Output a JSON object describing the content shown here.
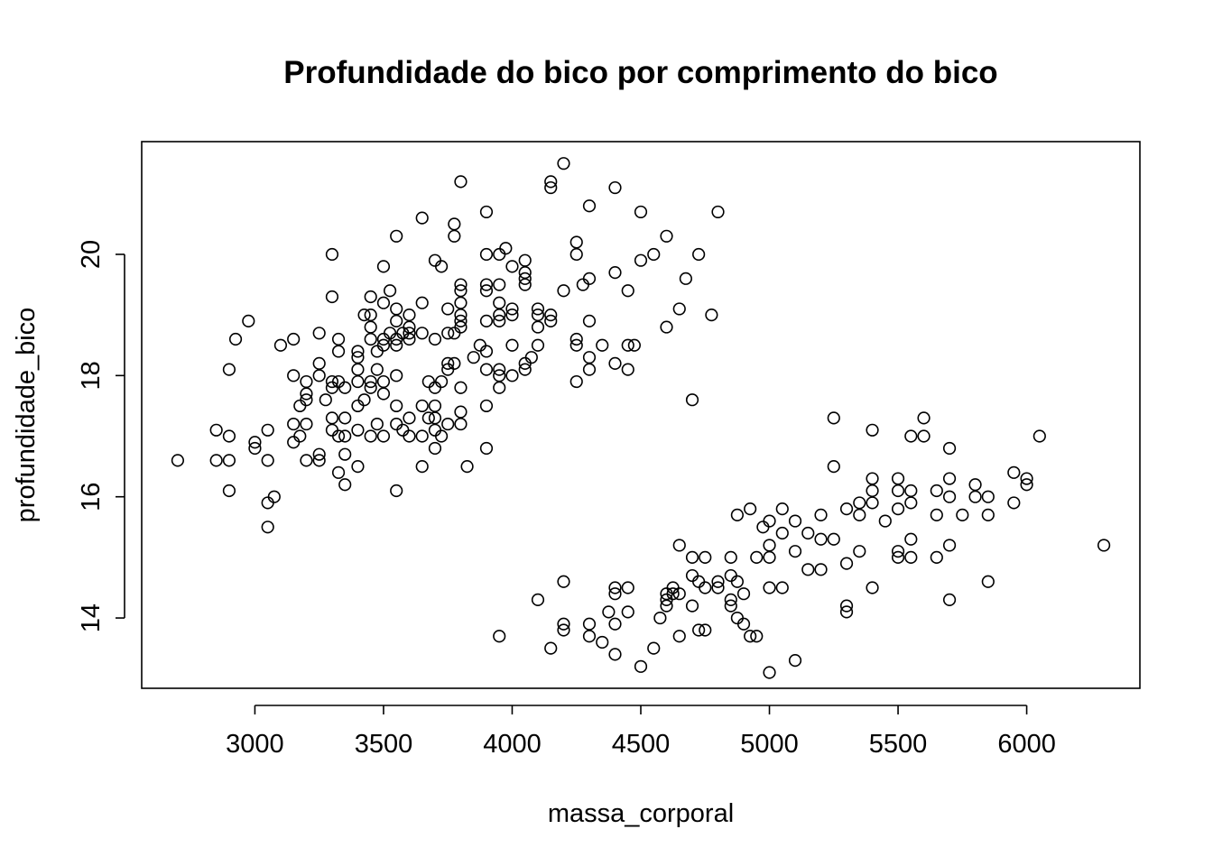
{
  "chart_data": {
    "type": "scatter",
    "title": "Profundidade do bico por comprimento do bico",
    "xlabel": "massa_corporal",
    "ylabel": "profundidade_bico",
    "xlim": [
      2560,
      6440
    ],
    "ylim": [
      12.84,
      21.86
    ],
    "x_ticks": [
      3000,
      3500,
      4000,
      4500,
      5000,
      5500,
      6000
    ],
    "y_ticks": [
      14,
      16,
      18,
      20
    ],
    "grid": false,
    "legend": "none",
    "marker": "open-circle",
    "points": [
      [
        2700,
        16.6
      ],
      [
        2850,
        17.1
      ],
      [
        2850,
        16.6
      ],
      [
        2900,
        17.0
      ],
      [
        2900,
        16.6
      ],
      [
        2900,
        18.1
      ],
      [
        2900,
        16.1
      ],
      [
        2925,
        18.6
      ],
      [
        2975,
        18.9
      ],
      [
        3000,
        16.9
      ],
      [
        3000,
        16.8
      ],
      [
        3050,
        17.1
      ],
      [
        3050,
        16.6
      ],
      [
        3050,
        15.9
      ],
      [
        3050,
        15.5
      ],
      [
        3075,
        16.0
      ],
      [
        3100,
        18.5
      ],
      [
        3150,
        18.6
      ],
      [
        3150,
        18.0
      ],
      [
        3150,
        17.2
      ],
      [
        3150,
        16.9
      ],
      [
        3175,
        17.0
      ],
      [
        3175,
        17.5
      ],
      [
        3200,
        17.9
      ],
      [
        3200,
        17.7
      ],
      [
        3200,
        17.6
      ],
      [
        3200,
        17.2
      ],
      [
        3200,
        16.6
      ],
      [
        3250,
        18.7
      ],
      [
        3250,
        18.2
      ],
      [
        3250,
        18.0
      ],
      [
        3250,
        16.7
      ],
      [
        3250,
        16.6
      ],
      [
        3275,
        17.6
      ],
      [
        3300,
        20.0
      ],
      [
        3300,
        19.3
      ],
      [
        3300,
        17.9
      ],
      [
        3300,
        17.8
      ],
      [
        3300,
        17.3
      ],
      [
        3300,
        17.1
      ],
      [
        3325,
        18.6
      ],
      [
        3325,
        18.4
      ],
      [
        3325,
        17.9
      ],
      [
        3325,
        17.0
      ],
      [
        3325,
        16.4
      ],
      [
        3350,
        17.8
      ],
      [
        3350,
        17.3
      ],
      [
        3350,
        17.0
      ],
      [
        3350,
        16.7
      ],
      [
        3350,
        16.2
      ],
      [
        3400,
        18.4
      ],
      [
        3400,
        18.3
      ],
      [
        3400,
        18.1
      ],
      [
        3400,
        17.9
      ],
      [
        3400,
        17.5
      ],
      [
        3400,
        17.1
      ],
      [
        3400,
        16.5
      ],
      [
        3425,
        19.0
      ],
      [
        3425,
        17.6
      ],
      [
        3450,
        19.3
      ],
      [
        3450,
        19.0
      ],
      [
        3450,
        18.8
      ],
      [
        3450,
        18.6
      ],
      [
        3450,
        17.9
      ],
      [
        3450,
        17.8
      ],
      [
        3450,
        17.0
      ],
      [
        3475,
        18.4
      ],
      [
        3475,
        18.1
      ],
      [
        3475,
        17.2
      ],
      [
        3500,
        19.8
      ],
      [
        3500,
        19.2
      ],
      [
        3500,
        18.6
      ],
      [
        3500,
        18.5
      ],
      [
        3500,
        17.9
      ],
      [
        3500,
        17.7
      ],
      [
        3500,
        17.0
      ],
      [
        3525,
        19.4
      ],
      [
        3525,
        18.7
      ],
      [
        3550,
        20.3
      ],
      [
        3550,
        19.1
      ],
      [
        3550,
        18.9
      ],
      [
        3550,
        18.6
      ],
      [
        3550,
        18.5
      ],
      [
        3550,
        18.0
      ],
      [
        3550,
        17.5
      ],
      [
        3550,
        17.2
      ],
      [
        3550,
        16.1
      ],
      [
        3575,
        18.7
      ],
      [
        3575,
        17.1
      ],
      [
        3600,
        19.0
      ],
      [
        3600,
        18.8
      ],
      [
        3600,
        18.7
      ],
      [
        3600,
        18.6
      ],
      [
        3600,
        17.3
      ],
      [
        3600,
        17.0
      ],
      [
        3650,
        20.6
      ],
      [
        3650,
        19.2
      ],
      [
        3650,
        18.7
      ],
      [
        3650,
        17.5
      ],
      [
        3650,
        17.0
      ],
      [
        3650,
        16.5
      ],
      [
        3675,
        17.9
      ],
      [
        3675,
        17.3
      ],
      [
        3700,
        19.9
      ],
      [
        3700,
        18.6
      ],
      [
        3700,
        17.8
      ],
      [
        3700,
        17.5
      ],
      [
        3700,
        17.3
      ],
      [
        3700,
        17.1
      ],
      [
        3700,
        16.8
      ],
      [
        3725,
        19.8
      ],
      [
        3725,
        17.9
      ],
      [
        3725,
        17.0
      ],
      [
        3750,
        19.1
      ],
      [
        3750,
        18.7
      ],
      [
        3750,
        18.2
      ],
      [
        3750,
        18.1
      ],
      [
        3750,
        17.2
      ],
      [
        3775,
        20.5
      ],
      [
        3775,
        20.3
      ],
      [
        3775,
        18.2
      ],
      [
        3775,
        18.7
      ],
      [
        3800,
        21.2
      ],
      [
        3800,
        19.5
      ],
      [
        3800,
        19.4
      ],
      [
        3800,
        19.2
      ],
      [
        3800,
        19.0
      ],
      [
        3800,
        18.9
      ],
      [
        3800,
        18.8
      ],
      [
        3800,
        17.8
      ],
      [
        3800,
        17.4
      ],
      [
        3800,
        17.2
      ],
      [
        3825,
        16.5
      ],
      [
        3850,
        18.3
      ],
      [
        3875,
        18.5
      ],
      [
        3900,
        20.7
      ],
      [
        3900,
        20.0
      ],
      [
        3900,
        19.5
      ],
      [
        3900,
        19.4
      ],
      [
        3900,
        18.9
      ],
      [
        3900,
        18.4
      ],
      [
        3900,
        18.1
      ],
      [
        3900,
        17.5
      ],
      [
        3900,
        16.8
      ],
      [
        3950,
        20.0
      ],
      [
        3950,
        19.5
      ],
      [
        3950,
        19.2
      ],
      [
        3950,
        19.0
      ],
      [
        3950,
        18.9
      ],
      [
        3950,
        18.1
      ],
      [
        3950,
        18.0
      ],
      [
        3950,
        17.8
      ],
      [
        3975,
        20.1
      ],
      [
        4000,
        19.8
      ],
      [
        4000,
        19.1
      ],
      [
        4000,
        19.0
      ],
      [
        4000,
        18.5
      ],
      [
        4000,
        18.0
      ],
      [
        4050,
        19.9
      ],
      [
        4050,
        19.7
      ],
      [
        4050,
        19.6
      ],
      [
        4050,
        19.5
      ],
      [
        4050,
        18.2
      ],
      [
        4050,
        18.1
      ],
      [
        4075,
        18.3
      ],
      [
        4100,
        19.1
      ],
      [
        4100,
        19.0
      ],
      [
        4100,
        18.8
      ],
      [
        4100,
        18.5
      ],
      [
        4150,
        21.2
      ],
      [
        4150,
        21.1
      ],
      [
        4150,
        19.0
      ],
      [
        4150,
        18.9
      ],
      [
        4200,
        21.5
      ],
      [
        4200,
        19.4
      ],
      [
        4250,
        20.2
      ],
      [
        4250,
        20.0
      ],
      [
        4250,
        18.6
      ],
      [
        4250,
        18.5
      ],
      [
        4250,
        17.9
      ],
      [
        4275,
        19.5
      ],
      [
        4300,
        20.8
      ],
      [
        4300,
        19.6
      ],
      [
        4300,
        18.9
      ],
      [
        4300,
        18.3
      ],
      [
        4300,
        18.1
      ],
      [
        4350,
        18.5
      ],
      [
        4400,
        21.1
      ],
      [
        4400,
        19.7
      ],
      [
        4400,
        18.2
      ],
      [
        4450,
        19.4
      ],
      [
        4450,
        18.5
      ],
      [
        4450,
        18.1
      ],
      [
        4475,
        18.5
      ],
      [
        4500,
        20.7
      ],
      [
        4500,
        19.9
      ],
      [
        4550,
        20.0
      ],
      [
        4600,
        20.3
      ],
      [
        4600,
        18.8
      ],
      [
        4650,
        19.1
      ],
      [
        4675,
        19.6
      ],
      [
        4700,
        17.6
      ],
      [
        4725,
        20.0
      ],
      [
        4775,
        19.0
      ],
      [
        4800,
        20.7
      ],
      [
        3950,
        13.7
      ],
      [
        4100,
        14.3
      ],
      [
        4150,
        13.5
      ],
      [
        4200,
        14.6
      ],
      [
        4200,
        13.9
      ],
      [
        4200,
        13.8
      ],
      [
        4300,
        13.9
      ],
      [
        4300,
        13.7
      ],
      [
        4350,
        13.6
      ],
      [
        4375,
        14.1
      ],
      [
        4400,
        14.5
      ],
      [
        4400,
        14.4
      ],
      [
        4400,
        13.9
      ],
      [
        4400,
        13.4
      ],
      [
        4450,
        14.5
      ],
      [
        4450,
        14.1
      ],
      [
        4500,
        13.2
      ],
      [
        4550,
        13.5
      ],
      [
        4575,
        14.0
      ],
      [
        4600,
        14.4
      ],
      [
        4600,
        14.3
      ],
      [
        4600,
        14.2
      ],
      [
        4625,
        14.5
      ],
      [
        4625,
        14.4
      ],
      [
        4650,
        15.2
      ],
      [
        4650,
        14.4
      ],
      [
        4650,
        13.7
      ],
      [
        4700,
        15.0
      ],
      [
        4700,
        14.7
      ],
      [
        4700,
        14.2
      ],
      [
        4725,
        14.6
      ],
      [
        4725,
        13.8
      ],
      [
        4750,
        15.0
      ],
      [
        4750,
        14.5
      ],
      [
        4750,
        13.8
      ],
      [
        4800,
        14.6
      ],
      [
        4800,
        14.5
      ],
      [
        4850,
        15.0
      ],
      [
        4850,
        14.7
      ],
      [
        4850,
        14.3
      ],
      [
        4850,
        14.2
      ],
      [
        4875,
        15.7
      ],
      [
        4875,
        14.6
      ],
      [
        4875,
        14.0
      ],
      [
        4900,
        14.4
      ],
      [
        4900,
        13.9
      ],
      [
        4925,
        15.8
      ],
      [
        4925,
        13.7
      ],
      [
        4950,
        15.0
      ],
      [
        4950,
        13.7
      ],
      [
        4975,
        15.5
      ],
      [
        5000,
        15.6
      ],
      [
        5000,
        15.2
      ],
      [
        5000,
        15.0
      ],
      [
        5000,
        14.5
      ],
      [
        5000,
        13.1
      ],
      [
        5050,
        15.8
      ],
      [
        5050,
        15.4
      ],
      [
        5050,
        14.5
      ],
      [
        5100,
        15.6
      ],
      [
        5100,
        15.1
      ],
      [
        5100,
        13.3
      ],
      [
        5150,
        15.4
      ],
      [
        5150,
        14.8
      ],
      [
        5200,
        15.7
      ],
      [
        5200,
        15.3
      ],
      [
        5200,
        14.8
      ],
      [
        5250,
        17.3
      ],
      [
        5250,
        16.5
      ],
      [
        5250,
        15.3
      ],
      [
        5300,
        15.8
      ],
      [
        5300,
        14.9
      ],
      [
        5300,
        14.2
      ],
      [
        5300,
        14.1
      ],
      [
        5350,
        15.9
      ],
      [
        5350,
        15.7
      ],
      [
        5350,
        15.1
      ],
      [
        5400,
        17.1
      ],
      [
        5400,
        16.3
      ],
      [
        5400,
        16.1
      ],
      [
        5400,
        15.9
      ],
      [
        5400,
        14.5
      ],
      [
        5450,
        15.6
      ],
      [
        5500,
        16.3
      ],
      [
        5500,
        16.1
      ],
      [
        5500,
        15.8
      ],
      [
        5500,
        15.1
      ],
      [
        5500,
        15.0
      ],
      [
        5550,
        17.0
      ],
      [
        5550,
        16.1
      ],
      [
        5550,
        15.9
      ],
      [
        5550,
        15.3
      ],
      [
        5550,
        15.0
      ],
      [
        5600,
        17.3
      ],
      [
        5600,
        17.0
      ],
      [
        5650,
        16.1
      ],
      [
        5650,
        15.7
      ],
      [
        5650,
        15.0
      ],
      [
        5700,
        16.8
      ],
      [
        5700,
        16.3
      ],
      [
        5700,
        16.0
      ],
      [
        5700,
        15.2
      ],
      [
        5700,
        14.3
      ],
      [
        5750,
        15.7
      ],
      [
        5800,
        16.2
      ],
      [
        5800,
        16.0
      ],
      [
        5850,
        16.0
      ],
      [
        5850,
        15.7
      ],
      [
        5850,
        14.6
      ],
      [
        5950,
        16.4
      ],
      [
        5950,
        15.9
      ],
      [
        6000,
        16.3
      ],
      [
        6000,
        16.2
      ],
      [
        6050,
        17.0
      ],
      [
        6300,
        15.2
      ]
    ]
  }
}
